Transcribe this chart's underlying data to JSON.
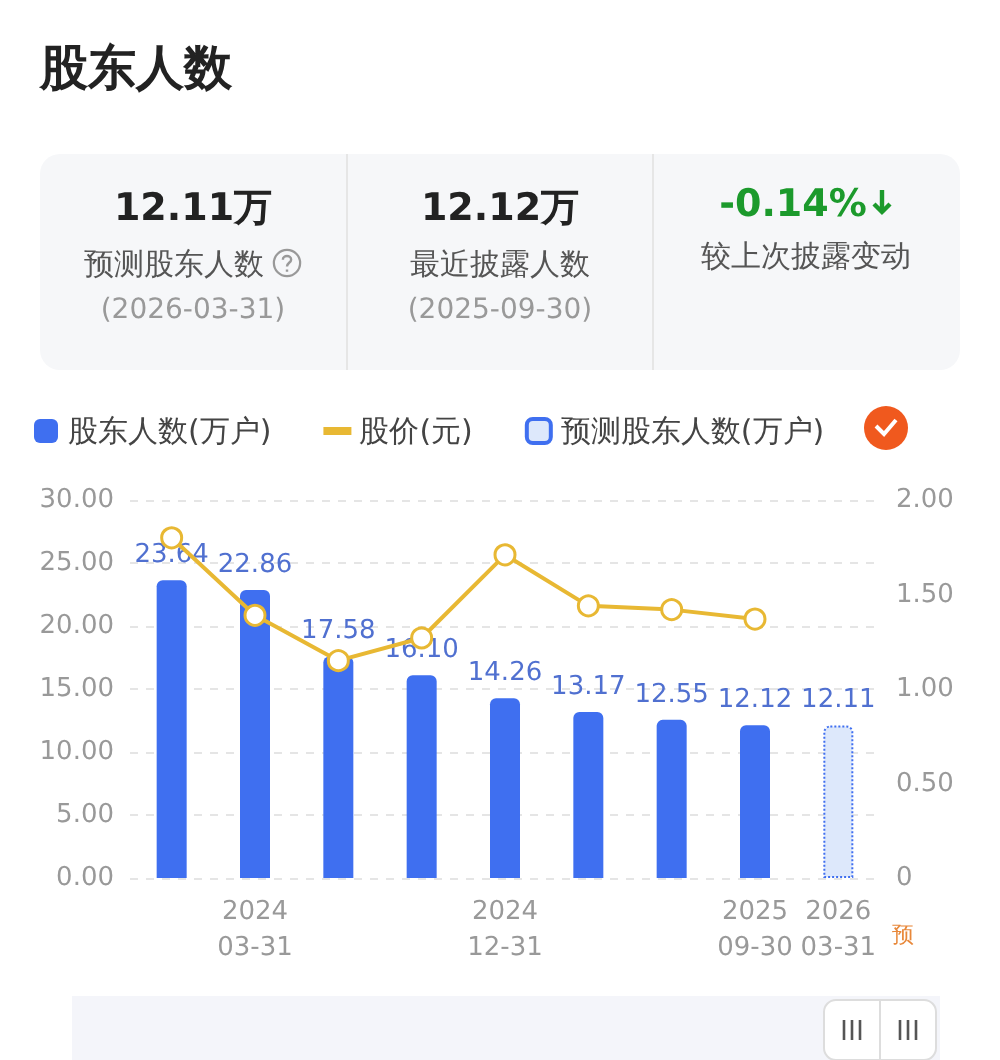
{
  "chart_data": [
    {
      "type": "other",
      "title": "股东人数",
      "annotations": [
        "12.11万",
        "预测股东人数",
        "(2026-03-31)",
        "12.12万",
        "最近披露人数",
        "(2025-09-30)",
        "-0.14%",
        "较上次披露变动"
      ]
    },
    {
      "type": "bar",
      "categories": [
        null,
        "2024\n03-31",
        null,
        null,
        "2024\n12-31",
        null,
        null,
        "2025\n09-30",
        "2026\n03-31"
      ],
      "series": [
        {
          "name": "股东人数(万户)",
          "color": "#3f6ff0",
          "values": [
            23.64,
            22.86,
            17.58,
            16.1,
            14.26,
            13.17,
            12.55,
            12.12,
            null
          ],
          "value_labels": [
            "23.64",
            "22.86",
            "17.58",
            "16.10",
            "14.26",
            "13.17",
            "12.55",
            "12.12",
            null
          ]
        },
        {
          "name": "股价(元)",
          "type": "line",
          "axis": "y2",
          "color": "#e8b833",
          "marker": "circle",
          "values": [
            1.8,
            1.39,
            1.15,
            1.27,
            1.71,
            1.44,
            1.42,
            1.37,
            null
          ]
        },
        {
          "name": "预测股东人数(万户)",
          "color": "#dde8fb",
          "line_style": "dotted",
          "values": [
            null,
            null,
            null,
            null,
            null,
            null,
            null,
            null,
            12.11
          ],
          "value_labels": [
            null,
            null,
            null,
            null,
            null,
            null,
            null,
            null,
            "12.11"
          ]
        }
      ],
      "ylim": [
        0,
        30
      ],
      "yticks": [
        {
          "value": 0,
          "label": "0.00"
        },
        {
          "value": 5,
          "label": "5.00"
        },
        {
          "value": 10,
          "label": "10.00"
        },
        {
          "value": 15,
          "label": "15.00"
        },
        {
          "value": 20,
          "label": "20.00"
        },
        {
          "value": 25,
          "label": "25.00"
        },
        {
          "value": 30,
          "label": "30.00"
        }
      ],
      "y2lim": [
        0,
        2
      ],
      "y2ticks": [
        0,
        {
          "value": 0.5,
          "label": "0.50"
        },
        {
          "value": 1,
          "label": "1.00"
        },
        {
          "value": 1.5,
          "label": "1.50"
        },
        {
          "value": 2,
          "label": "2.00"
        }
      ],
      "grid": "y",
      "legend": "top left",
      "annotations": [
        "预"
      ]
    }
  ]
}
